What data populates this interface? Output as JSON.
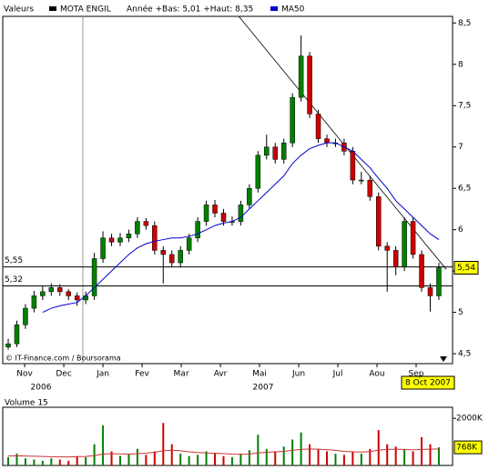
{
  "chart_data": {
    "type": "candlestick",
    "header": {
      "label": "Valeurs",
      "name": "MOTA ENGIL",
      "range_text": "Année +Bas: 5,01 +Haut: 8,35",
      "ma_label": "MA50"
    },
    "xticks": [
      {
        "value": 0,
        "label": "Nov"
      },
      {
        "value": 1,
        "label": "Dec"
      },
      {
        "value": 2,
        "label": "Jan"
      },
      {
        "value": 3,
        "label": "Fev"
      },
      {
        "value": 4,
        "label": "Mar"
      },
      {
        "value": 5,
        "label": "Avr"
      },
      {
        "value": 6,
        "label": "Mai"
      },
      {
        "value": 7,
        "label": "Jun"
      },
      {
        "value": 8,
        "label": "Jul"
      },
      {
        "value": 9,
        "label": "Aou"
      },
      {
        "value": 10,
        "label": "Sep"
      }
    ],
    "x_groups": [
      "2006",
      "2007"
    ],
    "xlim": [
      -0.56,
      10.93
    ],
    "ylim": [
      4.38,
      8.58
    ],
    "yticks": [
      {
        "value": 4.5,
        "label": "4,5"
      },
      5,
      {
        "value": 5.5,
        "label": "5,5"
      },
      6,
      {
        "value": 6.5,
        "label": "6,5"
      },
      7,
      {
        "value": 7.5,
        "label": "7,5"
      },
      8,
      {
        "value": 8.5,
        "label": "8,5"
      }
    ],
    "up_color": "#008000",
    "down_color": "#cc0000",
    "x": [
      -0.42,
      -0.2,
      0.02,
      0.24,
      0.46,
      0.68,
      0.9,
      1.12,
      1.34,
      1.56,
      1.78,
      2.0,
      2.22,
      2.44,
      2.66,
      2.88,
      3.1,
      3.32,
      3.54,
      3.76,
      3.98,
      4.2,
      4.42,
      4.64,
      4.86,
      5.08,
      5.3,
      5.52,
      5.74,
      5.96,
      6.18,
      6.4,
      6.62,
      6.84,
      7.06,
      7.28,
      7.5,
      7.72,
      7.94,
      8.16,
      8.38,
      8.6,
      8.82,
      9.04,
      9.26,
      9.48,
      9.7,
      9.92,
      10.14,
      10.36,
      10.58
    ],
    "open": [
      4.58,
      4.62,
      4.85,
      5.05,
      5.2,
      5.25,
      5.3,
      5.25,
      5.2,
      5.15,
      5.2,
      5.65,
      5.9,
      5.85,
      5.9,
      5.95,
      6.1,
      6.05,
      5.75,
      5.7,
      5.6,
      5.75,
      5.9,
      6.1,
      6.3,
      6.2,
      6.1,
      6.1,
      6.3,
      6.5,
      6.9,
      7.0,
      6.85,
      7.05,
      7.6,
      8.1,
      7.4,
      7.1,
      7.05,
      7.05,
      6.95,
      6.6,
      6.6,
      6.4,
      5.8,
      5.75,
      5.55,
      6.1,
      5.7,
      5.3,
      5.2
    ],
    "high": [
      4.68,
      4.9,
      5.1,
      5.26,
      5.32,
      5.35,
      5.34,
      5.28,
      5.24,
      5.25,
      5.72,
      5.98,
      5.95,
      5.96,
      6.0,
      6.15,
      6.14,
      6.1,
      5.8,
      5.75,
      5.8,
      5.95,
      6.15,
      6.35,
      6.36,
      6.25,
      6.16,
      6.35,
      6.55,
      6.95,
      7.15,
      7.05,
      7.1,
      7.65,
      8.35,
      8.15,
      7.45,
      7.15,
      7.1,
      7.1,
      7.0,
      6.7,
      6.65,
      6.45,
      5.85,
      5.8,
      6.15,
      6.15,
      5.75,
      5.35,
      5.6
    ],
    "low": [
      4.55,
      4.58,
      4.8,
      5.0,
      5.15,
      5.2,
      5.2,
      5.15,
      5.08,
      5.1,
      5.15,
      5.6,
      5.8,
      5.8,
      5.85,
      5.9,
      6.0,
      5.7,
      5.35,
      5.55,
      5.55,
      5.7,
      5.85,
      6.05,
      6.15,
      6.05,
      6.05,
      6.05,
      6.25,
      6.45,
      6.85,
      6.8,
      6.8,
      7.0,
      7.55,
      7.35,
      7.05,
      7.0,
      7.0,
      6.9,
      6.55,
      6.55,
      6.35,
      5.75,
      5.25,
      5.45,
      5.5,
      5.65,
      5.25,
      5.01,
      5.15
    ],
    "close": [
      4.62,
      4.85,
      5.05,
      5.2,
      5.25,
      5.3,
      5.25,
      5.2,
      5.15,
      5.2,
      5.65,
      5.9,
      5.85,
      5.9,
      5.95,
      6.1,
      6.05,
      5.75,
      5.7,
      5.6,
      5.75,
      5.9,
      6.1,
      6.3,
      6.2,
      6.1,
      6.1,
      6.3,
      6.5,
      6.9,
      7.0,
      6.85,
      7.05,
      7.6,
      8.1,
      7.4,
      7.1,
      7.05,
      7.05,
      6.95,
      6.6,
      6.6,
      6.4,
      5.8,
      5.75,
      5.55,
      6.1,
      5.7,
      5.3,
      5.2,
      5.54
    ],
    "ma50": {
      "name": "MA50",
      "color": "#0000cc",
      "values": [
        null,
        null,
        null,
        null,
        5.0,
        5.05,
        5.08,
        5.1,
        5.12,
        5.2,
        5.3,
        5.4,
        5.5,
        5.6,
        5.7,
        5.78,
        5.83,
        5.86,
        5.88,
        5.9,
        5.9,
        5.92,
        5.95,
        6.0,
        6.05,
        6.08,
        6.1,
        6.15,
        6.25,
        6.35,
        6.45,
        6.55,
        6.65,
        6.8,
        6.9,
        6.98,
        7.02,
        7.05,
        7.05,
        7.0,
        6.95,
        6.85,
        6.75,
        6.62,
        6.5,
        6.35,
        6.25,
        6.15,
        6.05,
        5.95,
        5.88
      ]
    },
    "trendline": {
      "x": [
        5.47,
        10.77
      ],
      "y": [
        8.58,
        5.52
      ]
    },
    "levels": [
      {
        "value": 5.55,
        "label": "5,55"
      },
      {
        "value": 5.32,
        "label": "5,32"
      }
    ],
    "last_price": {
      "value": 5.54,
      "label": "5,54"
    },
    "last_date": "8 Oct 2007",
    "source": "© IT-Finance.com / Boursorama",
    "volume": {
      "title": "Volume 15",
      "ylim": [
        0,
        2468
      ],
      "yticks": [
        {
          "value": 2000,
          "label": "2000K"
        }
      ],
      "values": [
        350,
        500,
        300,
        250,
        200,
        300,
        250,
        200,
        400,
        350,
        900,
        1700,
        600,
        400,
        500,
        700,
        450,
        600,
        1800,
        900,
        500,
        400,
        450,
        600,
        500,
        400,
        350,
        500,
        650,
        1300,
        700,
        600,
        800,
        1100,
        1400,
        900,
        700,
        600,
        500,
        450,
        600,
        500,
        700,
        1500,
        900,
        800,
        700,
        600,
        1200,
        900,
        768
      ],
      "ma": {
        "color": "#cc3333",
        "values": [
          400,
          410,
          400,
          390,
          380,
          370,
          360,
          360,
          370,
          380,
          420,
          480,
          500,
          490,
          480,
          500,
          520,
          560,
          620,
          650,
          620,
          580,
          550,
          530,
          520,
          500,
          480,
          470,
          480,
          530,
          560,
          580,
          600,
          640,
          680,
          700,
          690,
          670,
          640,
          600,
          580,
          570,
          590,
          650,
          680,
          690,
          680,
          660,
          680,
          690,
          700
        ]
      },
      "last": {
        "value": 768,
        "label": "768K"
      }
    }
  }
}
